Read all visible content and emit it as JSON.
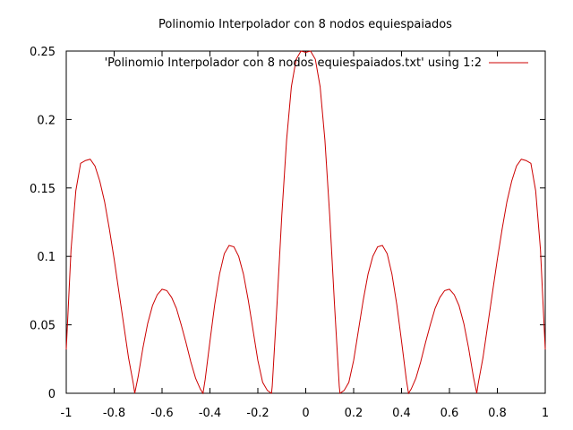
{
  "chart_data": {
    "type": "line",
    "title": "Polinomio Interpolador con 8 nodos equiespaiados",
    "xlabel": "",
    "ylabel": "",
    "xlim": [
      -1,
      1
    ],
    "ylim": [
      0,
      0.25
    ],
    "x_ticks": [
      -1,
      -0.8,
      -0.6,
      -0.4,
      -0.2,
      0,
      0.2,
      0.4,
      0.6,
      0.8,
      1
    ],
    "x_tick_labels": [
      "-1",
      "-0.8",
      "-0.6",
      "-0.4",
      "-0.2",
      "0",
      "0.2",
      "0.4",
      "0.6",
      "0.8",
      "1"
    ],
    "y_ticks": [
      0,
      0.05,
      0.1,
      0.15,
      0.2,
      0.25
    ],
    "y_tick_labels": [
      "0",
      "0.05",
      "0.1",
      "0.15",
      "0.2",
      "0.25"
    ],
    "grid": false,
    "legend_position": "top-right",
    "series": [
      {
        "name": "'Polinomio Interpolador con 8 nodos equiespaiados.txt' using 1:2",
        "color": "#cc0000",
        "x": [
          -1.0,
          -0.98,
          -0.96,
          -0.94,
          -0.92,
          -0.9,
          -0.88,
          -0.86,
          -0.84,
          -0.82,
          -0.8,
          -0.78,
          -0.76,
          -0.74,
          -0.72,
          -0.714,
          -0.7,
          -0.68,
          -0.66,
          -0.64,
          -0.62,
          -0.6,
          -0.58,
          -0.56,
          -0.54,
          -0.52,
          -0.5,
          -0.48,
          -0.46,
          -0.44,
          -0.429,
          -0.42,
          -0.4,
          -0.38,
          -0.36,
          -0.34,
          -0.32,
          -0.3,
          -0.28,
          -0.26,
          -0.24,
          -0.22,
          -0.2,
          -0.18,
          -0.16,
          -0.143,
          -0.14,
          -0.12,
          -0.1,
          -0.08,
          -0.06,
          -0.04,
          -0.02,
          0.0,
          0.02,
          0.04,
          0.06,
          0.08,
          0.1,
          0.12,
          0.14,
          0.143,
          0.16,
          0.18,
          0.2,
          0.22,
          0.24,
          0.26,
          0.28,
          0.3,
          0.32,
          0.34,
          0.36,
          0.38,
          0.4,
          0.42,
          0.429,
          0.44,
          0.46,
          0.48,
          0.5,
          0.52,
          0.54,
          0.56,
          0.58,
          0.6,
          0.62,
          0.64,
          0.66,
          0.68,
          0.7,
          0.714,
          0.72,
          0.74,
          0.76,
          0.78,
          0.8,
          0.82,
          0.84,
          0.86,
          0.88,
          0.9,
          0.92,
          0.94,
          0.96,
          0.98,
          1.0
        ],
        "y": [
          0.032,
          0.105,
          0.148,
          0.168,
          0.17,
          0.171,
          0.166,
          0.155,
          0.14,
          0.12,
          0.098,
          0.074,
          0.05,
          0.026,
          0.007,
          0.0,
          0.012,
          0.033,
          0.051,
          0.064,
          0.072,
          0.076,
          0.075,
          0.07,
          0.062,
          0.05,
          0.037,
          0.023,
          0.011,
          0.003,
          0.0,
          0.01,
          0.038,
          0.065,
          0.087,
          0.102,
          0.108,
          0.107,
          0.1,
          0.087,
          0.068,
          0.046,
          0.024,
          0.008,
          0.002,
          0.0,
          0.005,
          0.065,
          0.13,
          0.185,
          0.224,
          0.244,
          0.25,
          0.249,
          0.25,
          0.244,
          0.224,
          0.185,
          0.13,
          0.065,
          0.005,
          0.0,
          0.002,
          0.008,
          0.024,
          0.046,
          0.068,
          0.087,
          0.1,
          0.107,
          0.108,
          0.102,
          0.087,
          0.065,
          0.038,
          0.01,
          0.0,
          0.003,
          0.011,
          0.023,
          0.037,
          0.05,
          0.062,
          0.07,
          0.075,
          0.076,
          0.072,
          0.064,
          0.051,
          0.033,
          0.012,
          0.0,
          0.007,
          0.026,
          0.05,
          0.074,
          0.098,
          0.12,
          0.14,
          0.155,
          0.166,
          0.171,
          0.17,
          0.168,
          0.148,
          0.105,
          0.032
        ]
      }
    ]
  }
}
